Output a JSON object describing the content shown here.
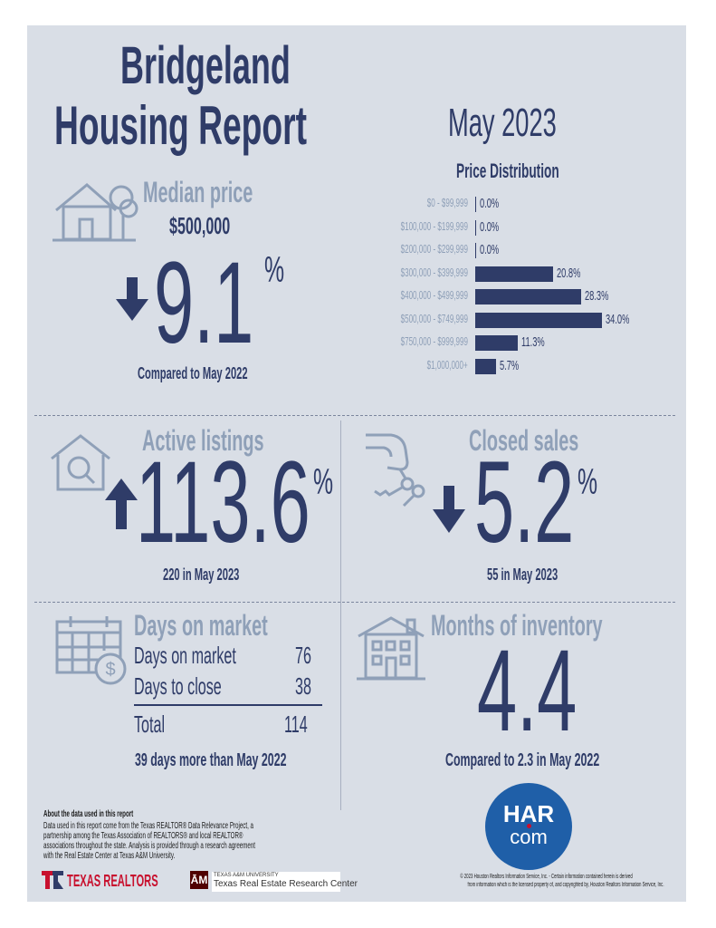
{
  "header": {
    "line1": "Bridgeland",
    "line2": "Housing Report",
    "period": "May 2023"
  },
  "median_price": {
    "title": "Median price",
    "value": "$500,000",
    "change": "9.1",
    "percent": "%",
    "direction": "down",
    "comparison": "Compared to May 2022"
  },
  "price_distribution": {
    "title": "Price Distribution",
    "chart_data": {
      "type": "bar",
      "orientation": "horizontal",
      "title": "Price Distribution",
      "categories": [
        "$0 - $99,999",
        "$100,000 - $199,999",
        "$200,000 - $299,999",
        "$300,000 - $399,999",
        "$400,000 - $499,999",
        "$500,000 - $749,999",
        "$750,000 - $999,999",
        "$1,000,000+"
      ],
      "values": [
        0.0,
        0.0,
        0.0,
        20.8,
        28.3,
        34.0,
        11.3,
        5.7
      ],
      "labels": [
        "0.0%",
        "0.0%",
        "0.0%",
        "20.8%",
        "28.3%",
        "34.0%",
        "11.3%",
        "5.7%"
      ],
      "xlim": [
        0,
        34.0
      ]
    }
  },
  "active_listings": {
    "title": "Active listings",
    "change": "113.6",
    "percent": "%",
    "direction": "up",
    "detail": "220 in May 2023"
  },
  "closed_sales": {
    "title": "Closed sales",
    "change": "5.2",
    "percent": "%",
    "direction": "down",
    "detail": "55 in May 2023"
  },
  "days_on_market": {
    "title": "Days on market",
    "rows": [
      {
        "label": "Days on market",
        "value": "76"
      },
      {
        "label": "Days to close",
        "value": "38"
      }
    ],
    "total_label": "Total",
    "total_value": "114",
    "comparison": "39 days more than May 2022"
  },
  "months_inventory": {
    "title": "Months of inventory",
    "value": "4.4",
    "comparison": "Compared to 2.3 in May 2022"
  },
  "footer": {
    "about_title": "About the data used in this report",
    "about_lines": [
      "Data used in this report come from the Texas REALTOR® Data Relevance Project, a",
      "partnership among the Texas Association of REALTORS® and local REALTOR®",
      "associations throughout the state. Analysis is provided through a research agreement",
      "with the Real Estate Center at Texas A&M University."
    ],
    "texas_realtors": "TEXAS REALTORS",
    "tamu_small": "TEXAS A&M UNIVERSITY",
    "tamu_center": "Texas Real Estate Research Center",
    "har_top": "HAR",
    "har_bottom": "com",
    "copyright_line1": "© 2023 Houston Realtors Information Service, Inc. - Certain information contained herein is derived",
    "copyright_line2": "from information which is the licensed property of, and copyrighted by, Houston Realtors Information Service, Inc."
  },
  "colors": {
    "navy": "#2f3c68",
    "slate": "#8fa0b8",
    "background": "#d9dee6",
    "har_blue": "#1f5fa8",
    "realtors_red": "#c8102e"
  }
}
